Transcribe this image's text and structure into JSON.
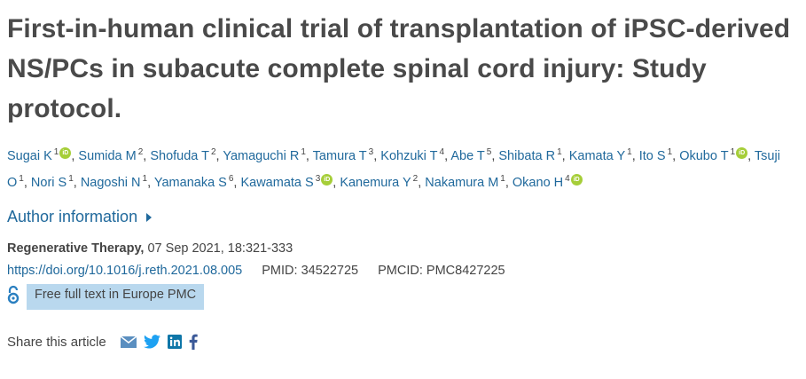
{
  "title": "First-in-human clinical trial of transplantation of iPSC-derived NS/PCs in subacute complete spinal cord injury: Study protocol.",
  "authors": [
    {
      "name": "Sugai K",
      "aff": "1",
      "orcid": true
    },
    {
      "name": "Sumida M",
      "aff": "2",
      "orcid": false
    },
    {
      "name": "Shofuda T",
      "aff": "2",
      "orcid": false
    },
    {
      "name": "Yamaguchi R",
      "aff": "1",
      "orcid": false
    },
    {
      "name": "Tamura T",
      "aff": "3",
      "orcid": false
    },
    {
      "name": "Kohzuki T",
      "aff": "4",
      "orcid": false
    },
    {
      "name": "Abe T",
      "aff": "5",
      "orcid": false
    },
    {
      "name": "Shibata R",
      "aff": "1",
      "orcid": false
    },
    {
      "name": "Kamata Y",
      "aff": "1",
      "orcid": false
    },
    {
      "name": "Ito S",
      "aff": "1",
      "orcid": false
    },
    {
      "name": "Okubo T",
      "aff": "1",
      "orcid": true
    },
    {
      "name": "Tsuji O",
      "aff": "1",
      "orcid": false
    },
    {
      "name": "Nori S",
      "aff": "1",
      "orcid": false
    },
    {
      "name": "Nagoshi N",
      "aff": "1",
      "orcid": false
    },
    {
      "name": "Yamanaka S",
      "aff": "6",
      "orcid": false
    },
    {
      "name": "Kawamata S",
      "aff": "3",
      "orcid": true
    },
    {
      "name": "Kanemura Y",
      "aff": "2",
      "orcid": false
    },
    {
      "name": "Nakamura M",
      "aff": "1",
      "orcid": false
    },
    {
      "name": "Okano H",
      "aff": "4",
      "orcid": true
    }
  ],
  "orcid_label": "iD",
  "author_info_label": "Author information",
  "journal": {
    "name": "Regenerative Therapy,",
    "details": " 07 Sep 2021, 18:321-333"
  },
  "ids": {
    "doi": "https://doi.org/10.1016/j.reth.2021.08.005",
    "pmid": "PMID: 34522725",
    "pmcid": "PMCID: PMC8427225"
  },
  "free_full_text": "Free full text in Europe PMC",
  "share": {
    "label": "Share this article",
    "icons": [
      "email-icon",
      "twitter-icon",
      "linkedin-icon",
      "facebook-icon"
    ]
  },
  "colors": {
    "link": "#20699c",
    "orcid": "#a6ce39",
    "highlight": "#b9d8ee",
    "text": "#444444"
  }
}
